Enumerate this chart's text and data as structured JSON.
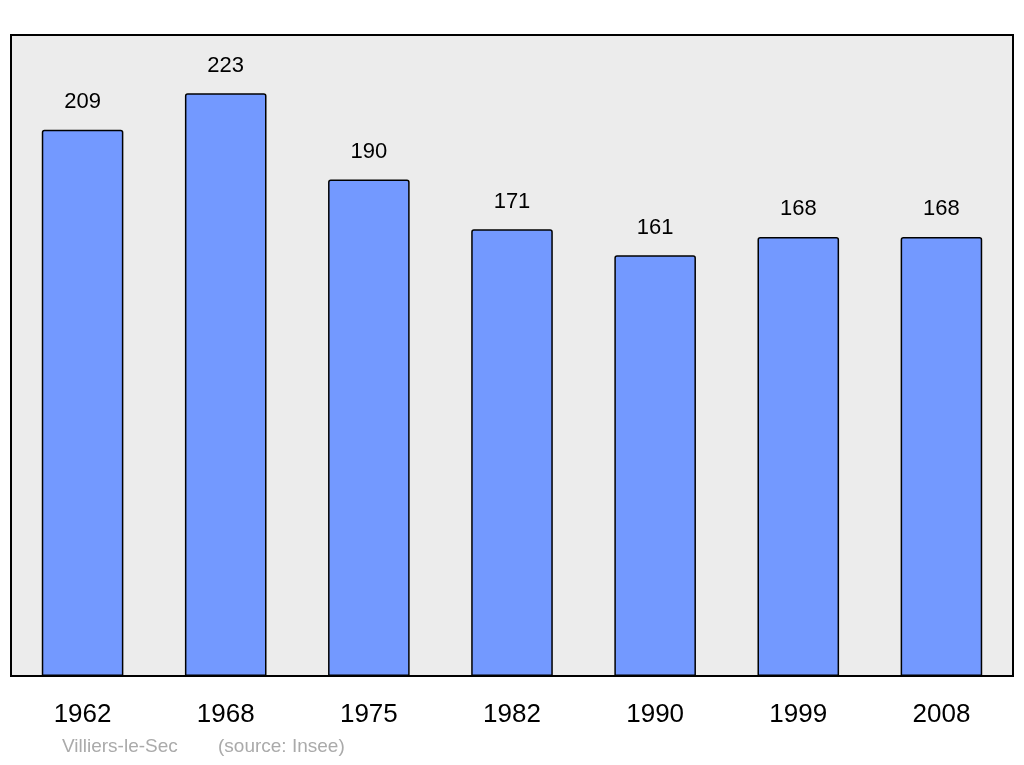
{
  "chart_data": {
    "type": "bar",
    "categories": [
      "1962",
      "1968",
      "1975",
      "1982",
      "1990",
      "1999",
      "2008"
    ],
    "values": [
      209,
      223,
      190,
      171,
      161,
      168,
      168
    ],
    "color": "#7399ff",
    "data_labels": true,
    "annotations": [
      "Villiers-le-Sec",
      "(source: Insee)"
    ]
  }
}
